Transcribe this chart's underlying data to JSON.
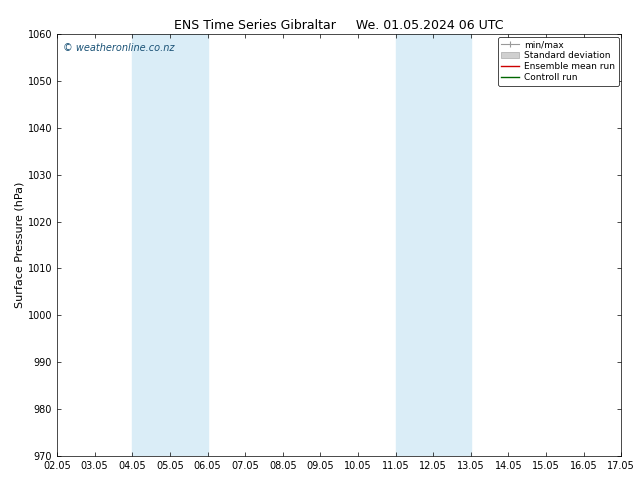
{
  "title": "ENS Time Series Gibraltar",
  "title2": "We. 01.05.2024 06 UTC",
  "ylabel": "Surface Pressure (hPa)",
  "ylim": [
    970,
    1060
  ],
  "yticks": [
    970,
    980,
    990,
    1000,
    1010,
    1020,
    1030,
    1040,
    1050,
    1060
  ],
  "xtick_labels": [
    "02.05",
    "03.05",
    "04.05",
    "05.05",
    "06.05",
    "07.05",
    "08.05",
    "09.05",
    "10.05",
    "11.05",
    "12.05",
    "13.05",
    "14.05",
    "15.05",
    "16.05",
    "17.05"
  ],
  "shaded_bands": [
    {
      "xstart": 2,
      "xend": 4,
      "color": "#daedf7"
    },
    {
      "xstart": 9,
      "xend": 11,
      "color": "#daedf7"
    }
  ],
  "watermark": "© weatheronline.co.nz",
  "watermark_color": "#1a5276",
  "legend_entries": [
    {
      "label": "min/max"
    },
    {
      "label": "Standard deviation"
    },
    {
      "label": "Ensemble mean run"
    },
    {
      "label": "Controll run"
    }
  ],
  "background_color": "#ffffff",
  "plot_bg_color": "#ffffff",
  "title_fontsize": 9,
  "axis_fontsize": 8,
  "tick_fontsize": 7,
  "watermark_fontsize": 7
}
